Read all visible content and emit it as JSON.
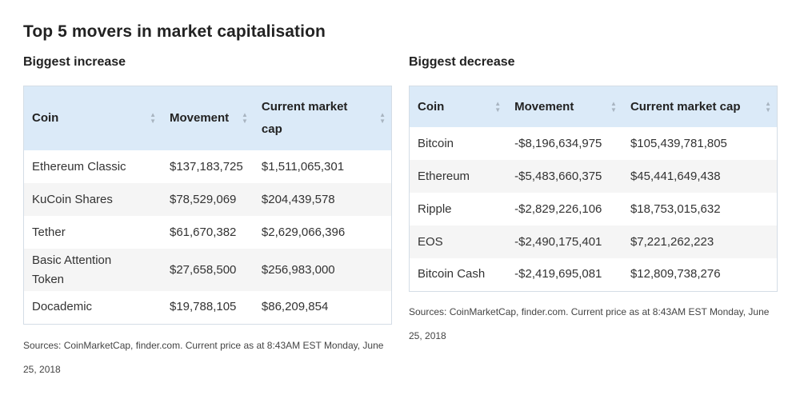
{
  "title": "Top 5 movers in market capitalisation",
  "increase": {
    "heading": "Biggest increase",
    "columns": [
      "Coin",
      "Movement",
      "Current market cap"
    ],
    "rows": [
      {
        "coin": "Ethereum Classic",
        "movement": "$137,183,725",
        "cap": "$1,511,065,301"
      },
      {
        "coin": "KuCoin Shares",
        "movement": "$78,529,069",
        "cap": "$204,439,578"
      },
      {
        "coin": "Tether",
        "movement": "$61,670,382",
        "cap": "$2,629,066,396"
      },
      {
        "coin": "Basic Attention Token",
        "movement": "$27,658,500",
        "cap": "$256,983,000"
      },
      {
        "coin": "Docademic",
        "movement": "$19,788,105",
        "cap": "$86,209,854"
      }
    ],
    "sources": "Sources: CoinMarketCap, finder.com. Current price as at 8:43AM EST Monday, June 25, 2018"
  },
  "decrease": {
    "heading": "Biggest decrease",
    "columns": [
      "Coin",
      "Movement",
      "Current market cap"
    ],
    "rows": [
      {
        "coin": "Bitcoin",
        "movement": "-$8,196,634,975",
        "cap": "$105,439,781,805"
      },
      {
        "coin": "Ethereum",
        "movement": "-$5,483,660,375",
        "cap": "$45,441,649,438"
      },
      {
        "coin": "Ripple",
        "movement": "-$2,829,226,106",
        "cap": "$18,753,015,632"
      },
      {
        "coin": "EOS",
        "movement": "-$2,490,175,401",
        "cap": "$7,221,262,223"
      },
      {
        "coin": "Bitcoin Cash",
        "movement": "-$2,419,695,081",
        "cap": "$12,809,738,276"
      }
    ],
    "sources": "Sources: CoinMarketCap, finder.com. Current price as at 8:43AM EST Monday, June 25, 2018"
  },
  "icons": {
    "sort": "sort-icon"
  },
  "colors": {
    "header_bg": "#dbeaf8",
    "row_alt": "#f5f5f5",
    "border": "#d4dde6"
  }
}
